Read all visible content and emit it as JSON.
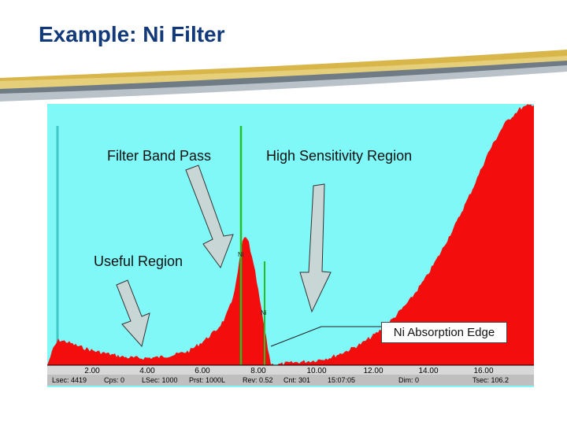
{
  "slide": {
    "title": "Example: Ni Filter"
  },
  "annotations": {
    "filter_band_pass": "Filter Band Pass",
    "high_sensitivity_region": "High Sensitivity Region",
    "useful_region": "Useful Region",
    "ni_absorption_edge": "Ni Absorption Edge"
  },
  "spectrum": {
    "peak_labels": {
      "ni_ka": "Ni",
      "ni_kb": "Ni"
    },
    "x_ticks": [
      "2.00",
      "4.00",
      "6.00",
      "8.00",
      "10.00",
      "12.00",
      "14.00",
      "16.00"
    ],
    "status_bar": [
      "Lsec: 4419",
      "Cps: 0",
      "LSec: 1000",
      "Prst: 1000L",
      "Rev: 0.52",
      "Cnt: 301",
      "15:07:05",
      "Dim: 0",
      "Tsec: 106.2"
    ]
  },
  "colors": {
    "background_region": "#80f8f8",
    "spectrum_fill": "#f40d0d",
    "marker_line": "#22c022",
    "title": "#123a7a",
    "arrow_fill": "#c9d6d6"
  }
}
